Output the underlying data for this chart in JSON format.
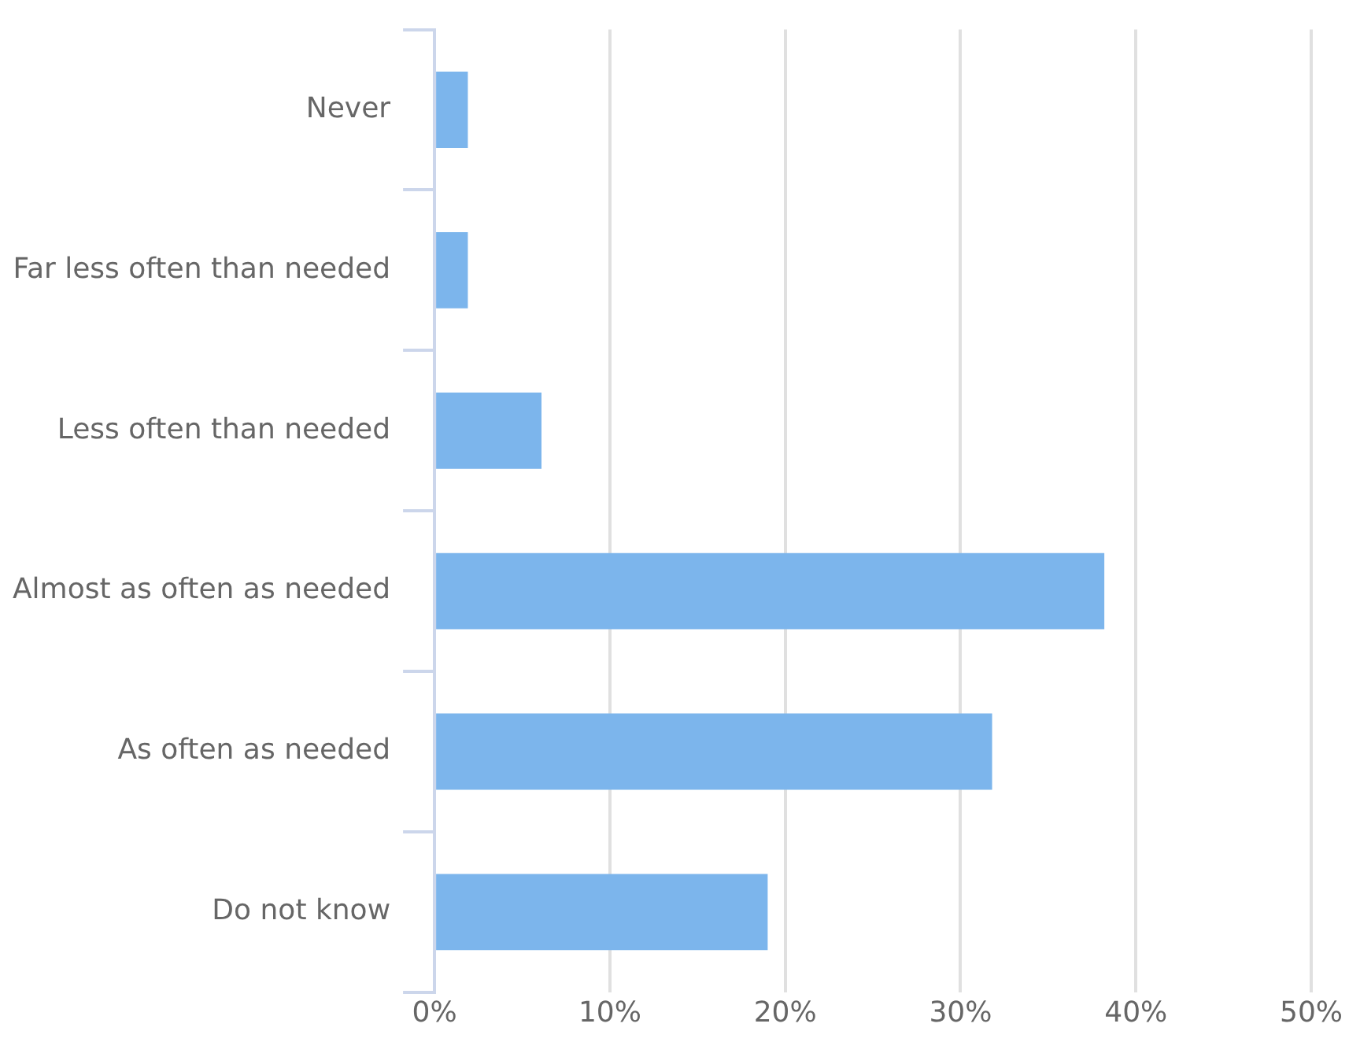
{
  "chart_data": {
    "type": "bar",
    "orientation": "horizontal",
    "categories": [
      "Never",
      "Far less often than needed",
      "Less often than needed",
      "Almost as often as needed",
      "As often as needed",
      "Do not know"
    ],
    "values": [
      1.9,
      1.9,
      6.1,
      38.2,
      31.8,
      19.0
    ],
    "color": "#7cb5ec",
    "xlim": [
      0,
      50
    ],
    "xticks": [
      {
        "value": 0,
        "label": "0%"
      },
      {
        "value": 10,
        "label": "10%"
      },
      {
        "value": 20,
        "label": "20%"
      },
      {
        "value": 30,
        "label": "30%"
      },
      {
        "value": 40,
        "label": "40%"
      },
      {
        "value": 50,
        "label": "50%"
      }
    ],
    "grid": "x",
    "legend": false
  }
}
